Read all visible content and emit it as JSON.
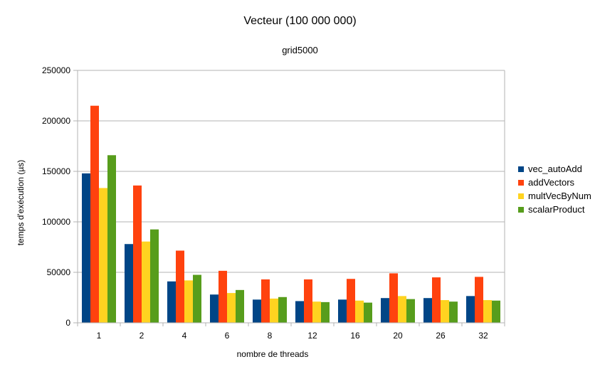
{
  "chart_data": {
    "type": "bar",
    "title": "Vecteur (100 000 000)",
    "subtitle": "grid5000",
    "xlabel": "nombre de threads",
    "ylabel": "temps d'exécution (µs)",
    "ylim": [
      0,
      250000
    ],
    "yticks": [
      0,
      50000,
      100000,
      150000,
      200000,
      250000
    ],
    "grid": true,
    "legend_position": "right",
    "categories": [
      "1",
      "2",
      "4",
      "6",
      "8",
      "12",
      "16",
      "20",
      "26",
      "32"
    ],
    "series": [
      {
        "name": "vec_autoAdd",
        "color": "#004586",
        "values": [
          148000,
          78000,
          41000,
          28000,
          23000,
          21500,
          23000,
          24500,
          24500,
          26500
        ]
      },
      {
        "name": "addVectors",
        "color": "#ff420e",
        "values": [
          215000,
          136000,
          71500,
          51500,
          43000,
          43000,
          43500,
          49000,
          45000,
          45500
        ]
      },
      {
        "name": "multVecByNum",
        "color": "#ffd320",
        "values": [
          133500,
          80500,
          42000,
          29500,
          24000,
          21000,
          22000,
          26500,
          22500,
          22500
        ]
      },
      {
        "name": "scalarProduct",
        "color": "#579d1c",
        "values": [
          166000,
          92500,
          47500,
          32500,
          25500,
          20500,
          20000,
          23500,
          21000,
          22000
        ]
      }
    ]
  }
}
